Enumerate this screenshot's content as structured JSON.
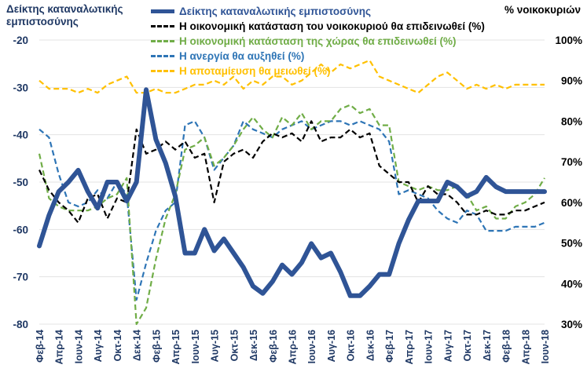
{
  "chart_data": {
    "type": "line",
    "left_axis_title": "Δείκτης καταναλωτικής εμπιστοσύνης",
    "right_axis_title": "% νοικοκυριών",
    "ylim_left": [
      -80,
      -20
    ],
    "ylim_right": [
      30,
      100
    ],
    "left_ticks": [
      "-20",
      "-30",
      "-40",
      "-50",
      "-60",
      "-70",
      "-80"
    ],
    "right_ticks": [
      "100%",
      "90%",
      "80%",
      "70%",
      "60%",
      "50%",
      "40%",
      "30%"
    ],
    "x_tick_labels": [
      "Φεβ-14",
      "Απρ-14",
      "Ιουν-14",
      "Αυγ-14",
      "Οκτ-14",
      "Δεκ-14",
      "Φεβ-15",
      "Απρ-15",
      "Ιουν-15",
      "Αυγ-15",
      "Οκτ-15",
      "Δεκ-15",
      "Φεβ-16",
      "Απρ-16",
      "Ιουν-16",
      "Αυγ-16",
      "Οκτ-16",
      "Δεκ-16",
      "Φεβ-17",
      "Απρ-17",
      "Ιουν-17",
      "Αυγ-17",
      "Οκτ-17",
      "Δεκ-17",
      "Φεβ-18",
      "Απρ-18",
      "Ιουν-18"
    ],
    "n_points": 53,
    "series": [
      {
        "name": "Δείκτης καταναλωτικής εμπιστοσύνης",
        "axis": "left",
        "color": "#2F5496",
        "style": "solid",
        "values": [
          -63.5,
          -57,
          -52,
          -50,
          -47.5,
          -52,
          -55.5,
          -50,
          -50,
          -54,
          -50,
          -30.5,
          -41,
          -46,
          -53,
          -65,
          -65,
          -60,
          -64.5,
          -62,
          -65,
          -68,
          -72,
          -73.5,
          -71,
          -67.5,
          -69.5,
          -67,
          -63,
          -66,
          -65,
          -69,
          -74,
          -74,
          -72,
          -69.5,
          -69.5,
          -63,
          -58,
          -54,
          -54,
          -54,
          -50,
          -51,
          -53,
          -52,
          -49,
          -51,
          -52,
          -52,
          -52,
          -52,
          -52
        ]
      },
      {
        "name": "Η οικονομική κατάσταση του νοικοκυριού θα επιδεινωθεί (%)",
        "axis": "right",
        "color": "#000000",
        "style": "dash",
        "values": [
          68,
          63,
          60,
          58,
          55,
          61,
          62,
          56,
          61,
          60,
          78,
          72,
          73,
          75,
          73,
          75,
          71,
          72,
          60,
          70,
          72,
          73,
          71,
          75,
          77,
          76,
          77,
          75,
          80,
          75,
          76,
          76,
          78,
          76,
          77,
          69,
          67,
          65,
          65,
          60,
          64,
          62,
          62,
          60,
          57,
          57,
          58,
          57,
          57,
          58,
          58,
          59,
          60
        ]
      },
      {
        "name": "Η οικονομική κατάσταση  της χώρας θα επιδεινωθεί (%)",
        "axis": "right",
        "color": "#70AD47",
        "style": "dash",
        "values": [
          72,
          61,
          59,
          58,
          58,
          58,
          59,
          61,
          62,
          66,
          30,
          34,
          46,
          56,
          62,
          73,
          74,
          76,
          69,
          71,
          74,
          78,
          81,
          78,
          76,
          81,
          79,
          82,
          78,
          80,
          80,
          83,
          84,
          82,
          83,
          79,
          79,
          65,
          64,
          63,
          64,
          63,
          63,
          64,
          62,
          58,
          59,
          56,
          56,
          59,
          60,
          62,
          66
        ]
      },
      {
        "name": "Η ανεργία θα αυξηθεί (%)",
        "axis": "right",
        "color": "#2E75B6",
        "style": "dash",
        "values": [
          78,
          76,
          67,
          60,
          59,
          60,
          63,
          61,
          65,
          62,
          36,
          45,
          53,
          58,
          60,
          79,
          80,
          76,
          68,
          71,
          74,
          80,
          78,
          77,
          76,
          78,
          79,
          80,
          78,
          79,
          80,
          80,
          79,
          80,
          79,
          78,
          75,
          62,
          63,
          62,
          61,
          58,
          56,
          55,
          58,
          57,
          53,
          53,
          53,
          54,
          54,
          54,
          55
        ]
      },
      {
        "name": "Η αποταμίευση θα μειωθεί (%)",
        "axis": "right",
        "color": "#FFC000",
        "style": "dash",
        "values": [
          90,
          88,
          88,
          88,
          87,
          88,
          87,
          89,
          90,
          91,
          87,
          87,
          88,
          87,
          87,
          88,
          89,
          89,
          90,
          89,
          91,
          88,
          90,
          89,
          91,
          91,
          89,
          90,
          92,
          94,
          92,
          94,
          93,
          94,
          95,
          91,
          90,
          89,
          88,
          87,
          89,
          91,
          92,
          90,
          88,
          89,
          88,
          89,
          88,
          89,
          89,
          89,
          89
        ]
      }
    ]
  }
}
